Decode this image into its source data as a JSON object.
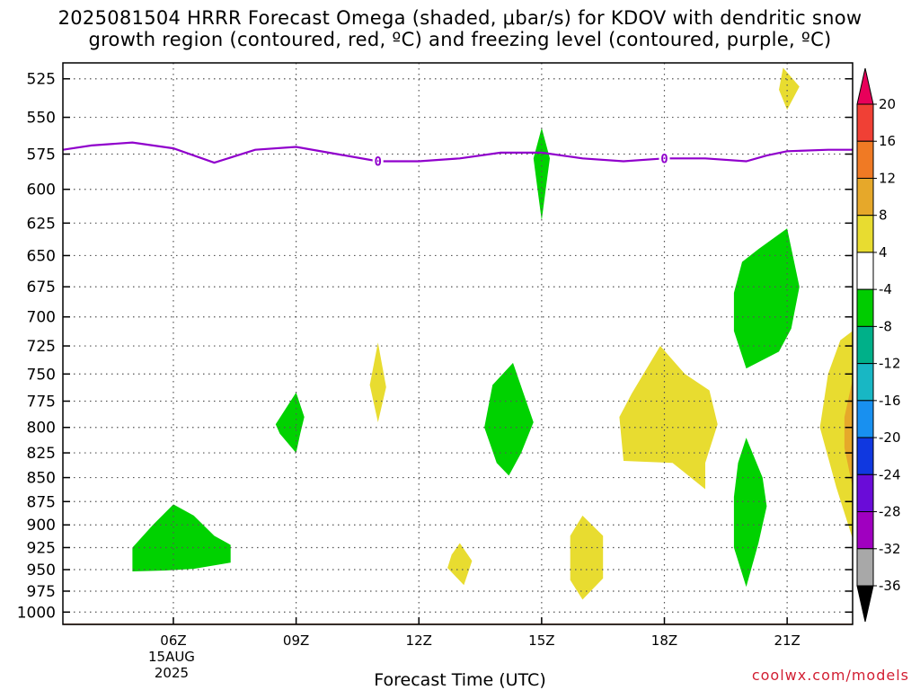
{
  "title_lines": [
    "2025081504 HRRR Forecast Omega (shaded, μbar/s) for KDOV with dendritic snow",
    "growth region (contoured, red, ºC) and freezing level (contoured, purple, ºC)"
  ],
  "watermark": "coolwx.com/models",
  "chart_data": {
    "type": "heatmap",
    "title": "2025081504 HRRR Forecast Omega (shaded, μbar/s) for KDOV with dendritic snow growth region (contoured, red, ºC) and freezing level (contoured, purple, ºC)",
    "xlabel": "Forecast Time (UTC)",
    "ylabel": "",
    "x_axis": {
      "unit": "hour UTC, 15 Aug 2025",
      "range": [
        3.3,
        22.6
      ],
      "ticks": [
        {
          "value": 6,
          "label": "06Z",
          "sublabels": [
            "15AUG",
            "2025"
          ]
        },
        {
          "value": 9,
          "label": "09Z",
          "sublabels": []
        },
        {
          "value": 12,
          "label": "12Z",
          "sublabels": []
        },
        {
          "value": 15,
          "label": "15Z",
          "sublabels": []
        },
        {
          "value": 18,
          "label": "18Z",
          "sublabels": []
        },
        {
          "value": 21,
          "label": "21Z",
          "sublabels": []
        }
      ]
    },
    "y_axis": {
      "unit": "hPa",
      "log_scale": true,
      "range": [
        1015,
        515
      ],
      "ticks": [
        525,
        550,
        575,
        600,
        625,
        650,
        675,
        700,
        725,
        750,
        775,
        800,
        825,
        850,
        875,
        900,
        925,
        950,
        975,
        1000
      ]
    },
    "grid": true,
    "colorbar": {
      "levels": [
        20,
        16,
        12,
        8,
        4,
        -4,
        -8,
        -12,
        -16,
        -20,
        -24,
        -28,
        -32,
        -36
      ],
      "colors": [
        "#e8005a",
        "#f04035",
        "#f07a24",
        "#e6a82a",
        "#e8dc30",
        "#ffffff",
        "#00cc00",
        "#00b089",
        "#18b7c4",
        "#1890f0",
        "#1038e0",
        "#6a0cd8",
        "#a000c0",
        "#a8a8a8",
        "#000000"
      ]
    },
    "omega_regions": [
      {
        "class": "-8 to -4",
        "color": "#00d200",
        "points": [
          [
            5.0,
            925
          ],
          [
            5.5,
            900
          ],
          [
            6.0,
            878
          ],
          [
            6.5,
            890
          ],
          [
            7.0,
            912
          ],
          [
            7.4,
            922
          ],
          [
            7.4,
            942
          ],
          [
            6.5,
            949
          ],
          [
            5.8,
            951
          ],
          [
            5.0,
            952
          ]
        ]
      },
      {
        "class": "-8 to -4",
        "color": "#00d200",
        "points": [
          [
            9.0,
            767
          ],
          [
            9.2,
            790
          ],
          [
            9.1,
            806
          ],
          [
            9.0,
            825
          ],
          [
            8.6,
            806
          ],
          [
            8.5,
            797
          ]
        ]
      },
      {
        "class": "-8 to -4",
        "color": "#00d200",
        "points": [
          [
            14.3,
            740
          ],
          [
            14.8,
            795
          ],
          [
            14.5,
            825
          ],
          [
            14.2,
            848
          ],
          [
            13.9,
            835
          ],
          [
            13.6,
            800
          ],
          [
            13.8,
            760
          ]
        ]
      },
      {
        "class": "-8 to -4",
        "color": "#00d200",
        "points": [
          [
            15.0,
            557
          ],
          [
            15.2,
            578
          ],
          [
            15.1,
            600
          ],
          [
            15.0,
            623
          ],
          [
            14.9,
            600
          ],
          [
            14.8,
            578
          ]
        ]
      },
      {
        "class": "-8 to -4",
        "color": "#00d200",
        "points": [
          [
            21.0,
            629
          ],
          [
            21.3,
            675
          ],
          [
            21.1,
            710
          ],
          [
            20.8,
            730
          ],
          [
            20.0,
            745
          ],
          [
            19.7,
            712
          ],
          [
            19.7,
            680
          ],
          [
            19.9,
            655
          ],
          [
            20.3,
            645
          ]
        ]
      },
      {
        "class": "-8 to -4",
        "color": "#00d200",
        "points": [
          [
            20.0,
            810
          ],
          [
            20.4,
            850
          ],
          [
            20.5,
            880
          ],
          [
            20.3,
            920
          ],
          [
            20.0,
            970
          ],
          [
            19.7,
            925
          ],
          [
            19.7,
            870
          ],
          [
            19.8,
            835
          ]
        ]
      },
      {
        "class": "4 to 8",
        "color": "#e8dc30",
        "points": [
          [
            11.0,
            722
          ],
          [
            11.2,
            762
          ],
          [
            11.0,
            795
          ],
          [
            10.8,
            760
          ]
        ]
      },
      {
        "class": "4 to 8",
        "color": "#e8dc30",
        "points": [
          [
            13.0,
            920
          ],
          [
            13.3,
            940
          ],
          [
            13.1,
            968
          ],
          [
            12.7,
            948
          ],
          [
            12.8,
            933
          ]
        ]
      },
      {
        "class": "4 to 8",
        "color": "#e8dc30",
        "points": [
          [
            16.0,
            890
          ],
          [
            16.5,
            912
          ],
          [
            16.5,
            960
          ],
          [
            16.0,
            985
          ],
          [
            15.7,
            962
          ],
          [
            15.7,
            912
          ]
        ]
      },
      {
        "class": "4 to 8",
        "color": "#e8dc30",
        "points": [
          [
            17.9,
            725
          ],
          [
            18.5,
            750
          ],
          [
            19.1,
            765
          ],
          [
            19.3,
            797
          ],
          [
            19.0,
            835
          ],
          [
            19.0,
            862
          ],
          [
            18.2,
            835
          ],
          [
            17.0,
            833
          ],
          [
            16.9,
            790
          ],
          [
            17.2,
            768
          ]
        ]
      },
      {
        "class": "4 to 8",
        "color": "#e8dc30",
        "points": [
          [
            20.9,
            518
          ],
          [
            21.3,
            530
          ],
          [
            21.0,
            545
          ],
          [
            20.8,
            532
          ]
        ]
      },
      {
        "class": "4 to 8",
        "color": "#e8dc30",
        "points": [
          [
            22.6,
            712
          ],
          [
            22.6,
            915
          ],
          [
            22.2,
            860
          ],
          [
            21.8,
            800
          ],
          [
            22.0,
            750
          ],
          [
            22.3,
            720
          ]
        ]
      },
      {
        "class": "8 to 12",
        "color": "#e6a82a",
        "points": [
          [
            22.6,
            755
          ],
          [
            22.6,
            860
          ],
          [
            22.4,
            820
          ],
          [
            22.4,
            790
          ]
        ]
      }
    ],
    "freezing_level": {
      "label": "0",
      "color": "#9000cc",
      "label_positions": [
        [
          11.0,
          580
        ],
        [
          18.0,
          578
        ]
      ],
      "points": [
        [
          3.3,
          572
        ],
        [
          4.0,
          569
        ],
        [
          5.0,
          567
        ],
        [
          6.0,
          571
        ],
        [
          7.0,
          581
        ],
        [
          8.0,
          572
        ],
        [
          9.0,
          570
        ],
        [
          10.0,
          575
        ],
        [
          11.0,
          580
        ],
        [
          12.0,
          580
        ],
        [
          13.0,
          578
        ],
        [
          14.0,
          574
        ],
        [
          15.0,
          574
        ],
        [
          16.0,
          578
        ],
        [
          17.0,
          580
        ],
        [
          18.0,
          578
        ],
        [
          19.0,
          578
        ],
        [
          20.0,
          580
        ],
        [
          20.5,
          576
        ],
        [
          21.0,
          573
        ],
        [
          22.0,
          572
        ],
        [
          22.6,
          572
        ]
      ]
    },
    "terrain": {
      "color": "#a0522d",
      "pressure": 1015
    }
  }
}
